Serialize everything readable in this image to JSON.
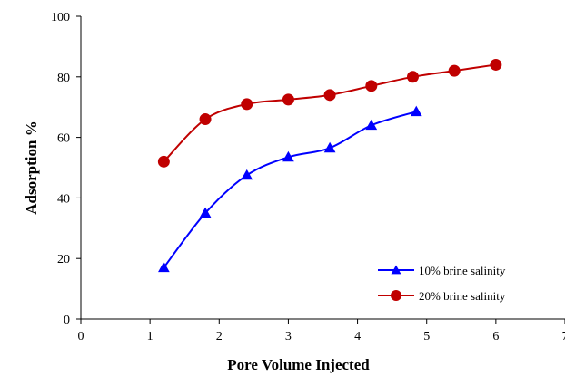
{
  "chart_data": {
    "type": "line",
    "title": "",
    "xlabel": "Pore Volume Injected",
    "ylabel": "Adsorption %",
    "xlim": [
      0,
      7
    ],
    "ylim": [
      0,
      100
    ],
    "x_ticks": [
      "0",
      "1",
      "2",
      "3",
      "4",
      "5",
      "6",
      "7"
    ],
    "y_ticks": [
      "0",
      "20",
      "40",
      "60",
      "80",
      "100"
    ],
    "grid": false,
    "legend_position": "bottom-right",
    "series": [
      {
        "name": "10% brine salinity",
        "color": "#0000ff",
        "marker": "triangle",
        "x": [
          1.2,
          1.8,
          2.4,
          3.0,
          3.6,
          4.2,
          4.85
        ],
        "y": [
          17,
          35,
          47.5,
          53.5,
          56.5,
          64,
          68.5
        ]
      },
      {
        "name": "20% brine salinity",
        "color": "#c00000",
        "marker": "circle",
        "x": [
          1.2,
          1.8,
          2.4,
          3.0,
          3.6,
          4.2,
          4.8,
          5.4,
          6.0
        ],
        "y": [
          52,
          66,
          71,
          72.5,
          74,
          77,
          80,
          82,
          84
        ]
      }
    ]
  }
}
